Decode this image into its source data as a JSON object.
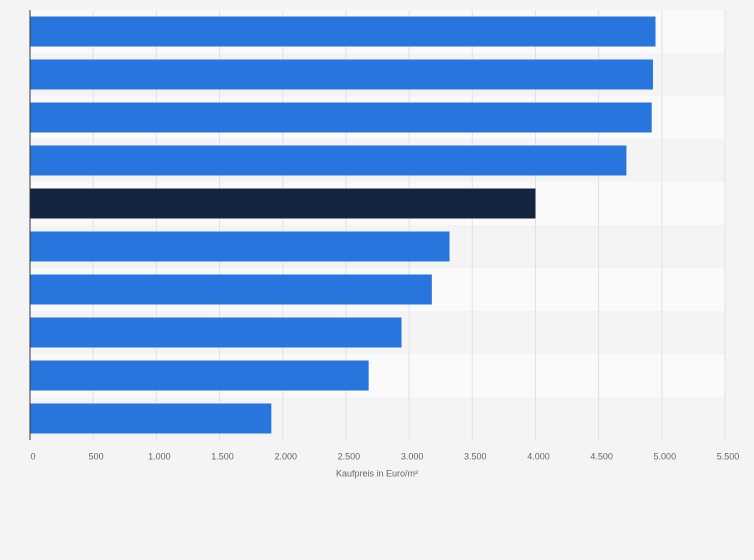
{
  "chart_data": {
    "type": "barh",
    "categories": [
      null,
      null,
      null,
      null,
      null,
      null,
      null,
      null,
      null,
      null
    ],
    "values": [
      4950,
      4930,
      4920,
      4720,
      4000,
      3320,
      3180,
      2940,
      2680,
      1910
    ],
    "colors": [
      "#2876dd",
      "#2876dd",
      "#2876dd",
      "#2876dd",
      "#12243f",
      "#2876dd",
      "#2876dd",
      "#2876dd",
      "#2876dd",
      "#2876dd"
    ],
    "xlabel": "Kaufpreis in Euro/m²",
    "xlim": [
      0,
      5500
    ],
    "xticks": [
      0,
      500,
      {
        "value": 1000,
        "label": "1.000"
      },
      {
        "value": 1500,
        "label": "1.500"
      },
      {
        "value": 2000,
        "label": "2.000"
      },
      {
        "value": 2500,
        "label": "2.500"
      },
      {
        "value": 3000,
        "label": "3.000"
      },
      {
        "value": 3500,
        "label": "3.500"
      },
      {
        "value": 4000,
        "label": "4.000"
      },
      {
        "value": 4500,
        "label": "4.500"
      },
      {
        "value": 5000,
        "label": "5.000"
      },
      {
        "value": 5500,
        "label": "5.500"
      }
    ],
    "grid": true
  }
}
